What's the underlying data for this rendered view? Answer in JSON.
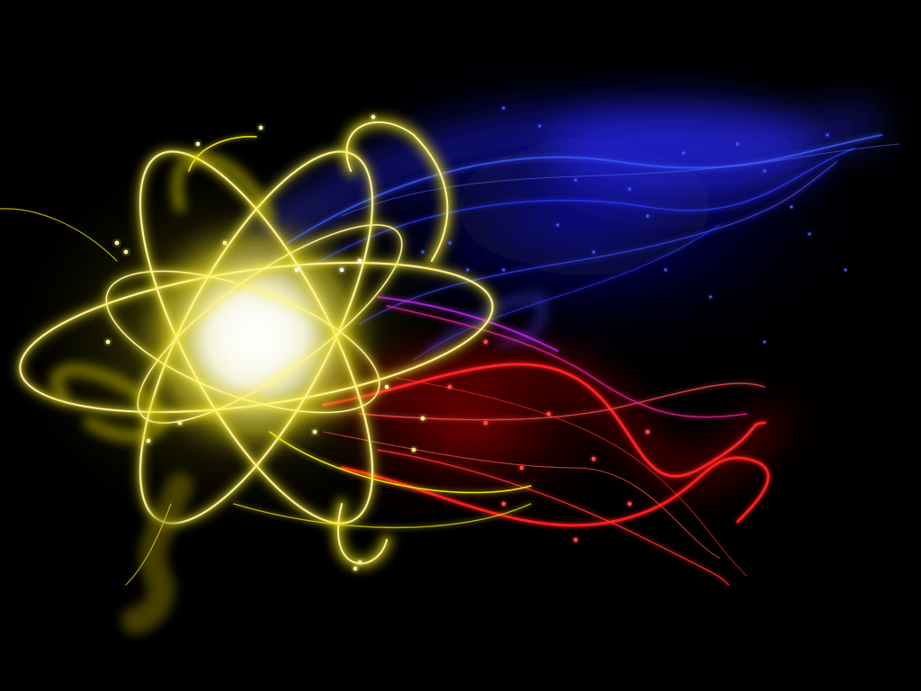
{
  "palette": {
    "background": "#000000",
    "yellow": "#f2e600",
    "yellow_soft": "#fff58a",
    "white_core": "#ffffff",
    "blue": "#1a1aff",
    "blue_soft": "#3c5cff",
    "red": "#ff1010",
    "red_soft": "#ff4a4a",
    "magenta": "#d02aff"
  },
  "artwork": {
    "style": "abstract-light-streaks",
    "atom_ring_count": 3
  }
}
